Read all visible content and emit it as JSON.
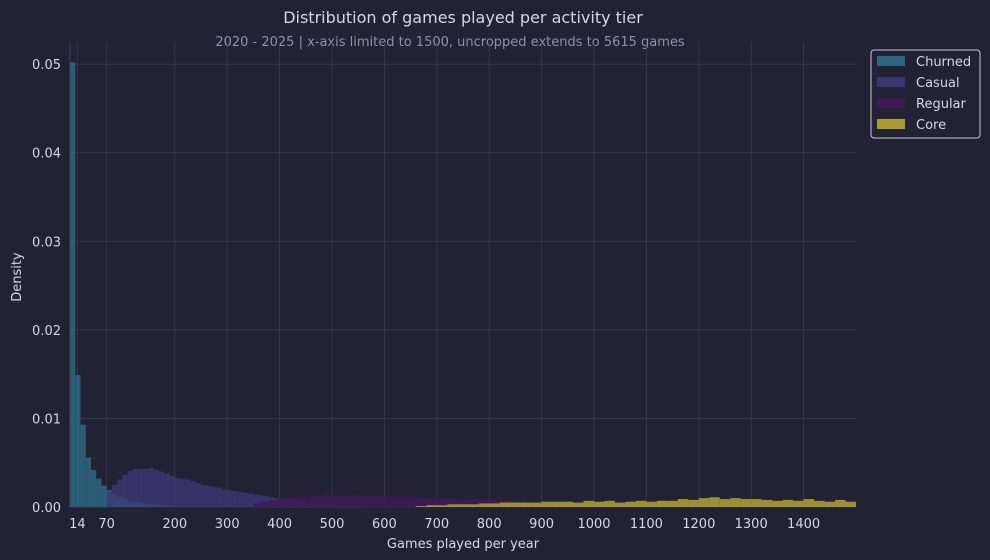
{
  "chart_data": {
    "type": "histogram",
    "title": "Distribution of games played per activity tier",
    "subtitle": "2020 - 2025 | x-axis limited to 1500, uncropped extends to 5615 games",
    "xlabel": "Games played per year",
    "ylabel": "Density",
    "xlim": [
      0,
      1500
    ],
    "ylim": [
      0,
      0.0525
    ],
    "x_ticks": [
      14,
      70,
      200,
      300,
      400,
      500,
      600,
      700,
      800,
      900,
      1000,
      1100,
      1200,
      1300,
      1400
    ],
    "y_ticks": [
      "0.00",
      "0.01",
      "0.02",
      "0.03",
      "0.04",
      "0.05"
    ],
    "grid": true,
    "legend_position": "top-right outside",
    "series": [
      {
        "name": "Churned",
        "color": "#2f6d86",
        "bins": [
          [
            0,
            10,
            0.0502
          ],
          [
            10,
            20,
            0.0149
          ],
          [
            20,
            30,
            0.0093
          ],
          [
            30,
            40,
            0.0056
          ],
          [
            40,
            50,
            0.0042
          ],
          [
            50,
            60,
            0.0032
          ],
          [
            60,
            70,
            0.0024
          ],
          [
            70,
            80,
            0.0019
          ],
          [
            80,
            90,
            0.0014
          ],
          [
            90,
            100,
            0.0011
          ],
          [
            100,
            110,
            0.0009
          ],
          [
            110,
            120,
            0.0007
          ],
          [
            120,
            130,
            0.0006
          ],
          [
            130,
            140,
            0.0005
          ],
          [
            140,
            150,
            0.0004
          ],
          [
            150,
            160,
            0.0003
          ],
          [
            160,
            170,
            0.0003
          ],
          [
            170,
            180,
            0.0002
          ],
          [
            180,
            190,
            0.0002
          ],
          [
            190,
            200,
            0.0001
          ]
        ]
      },
      {
        "name": "Casual",
        "color": "#3b3a78",
        "start": 70,
        "width": 10,
        "values": [
          0.0017,
          0.0025,
          0.0031,
          0.0036,
          0.0041,
          0.0043,
          0.0043,
          0.0043,
          0.0044,
          0.0042,
          0.004,
          0.0038,
          0.0035,
          0.0033,
          0.0032,
          0.0031,
          0.0029,
          0.0027,
          0.0025,
          0.0024,
          0.0023,
          0.0022,
          0.002,
          0.0019,
          0.0018,
          0.0017,
          0.0016,
          0.0015,
          0.0014,
          0.0013,
          0.0012,
          0.0011,
          0.001,
          0.0009,
          0.0009,
          0.0008,
          0.0007,
          0.0006,
          0.0005,
          0.0005,
          0.0004,
          0.0004,
          0.0003,
          0.0003,
          0.0002,
          0.0002,
          0.0002,
          0.0001,
          0.0001,
          0.0001
        ]
      },
      {
        "name": "Regular",
        "color": "#401a58",
        "start": 350,
        "width": 15,
        "values": [
          0.0004,
          0.0006,
          0.0008,
          0.001,
          0.0011,
          0.0012,
          0.0013,
          0.0013,
          0.0013,
          0.0014,
          0.0013,
          0.0013,
          0.0013,
          0.0013,
          0.0012,
          0.0013,
          0.0012,
          0.0012,
          0.0011,
          0.0012,
          0.0011,
          0.0011,
          0.001,
          0.0011,
          0.001,
          0.001,
          0.0009,
          0.0009,
          0.0009,
          0.0008,
          0.0008,
          0.0007,
          0.0007,
          0.0006,
          0.0006,
          0.0005,
          0.0005,
          0.0004,
          0.0004,
          0.0003,
          0.0003,
          0.0003,
          0.0002,
          0.0002,
          0.0002,
          0.0001,
          0.0001,
          0.0001
        ]
      },
      {
        "name": "Core",
        "color": "#b8a830",
        "start": 660,
        "width": 20,
        "values": [
          0.0001,
          0.0002,
          0.0002,
          0.0003,
          0.0003,
          0.0003,
          0.0004,
          0.0004,
          0.0005,
          0.0005,
          0.0005,
          0.0005,
          0.0006,
          0.0006,
          0.0006,
          0.0005,
          0.0007,
          0.0006,
          0.0007,
          0.0005,
          0.0006,
          0.0007,
          0.0006,
          0.0007,
          0.0007,
          0.0009,
          0.0008,
          0.001,
          0.0011,
          0.0009,
          0.001,
          0.0009,
          0.0009,
          0.0008,
          0.0007,
          0.0008,
          0.0007,
          0.0009,
          0.0007,
          0.0006,
          0.0008,
          0.0006,
          0.0007,
          0.0006,
          0.0008,
          0.0009,
          0.001,
          0.0009,
          0.0008,
          0.0007,
          0.0009,
          0.0008,
          0.0007,
          0.0006,
          0.0005,
          0.0007,
          0.0005,
          0.0008,
          0.0006,
          0.0008,
          0.0007,
          0.0005,
          0.0006,
          0.0005,
          0.0006,
          0.0006,
          0.0007,
          0.0005,
          0.0009
        ]
      }
    ]
  }
}
